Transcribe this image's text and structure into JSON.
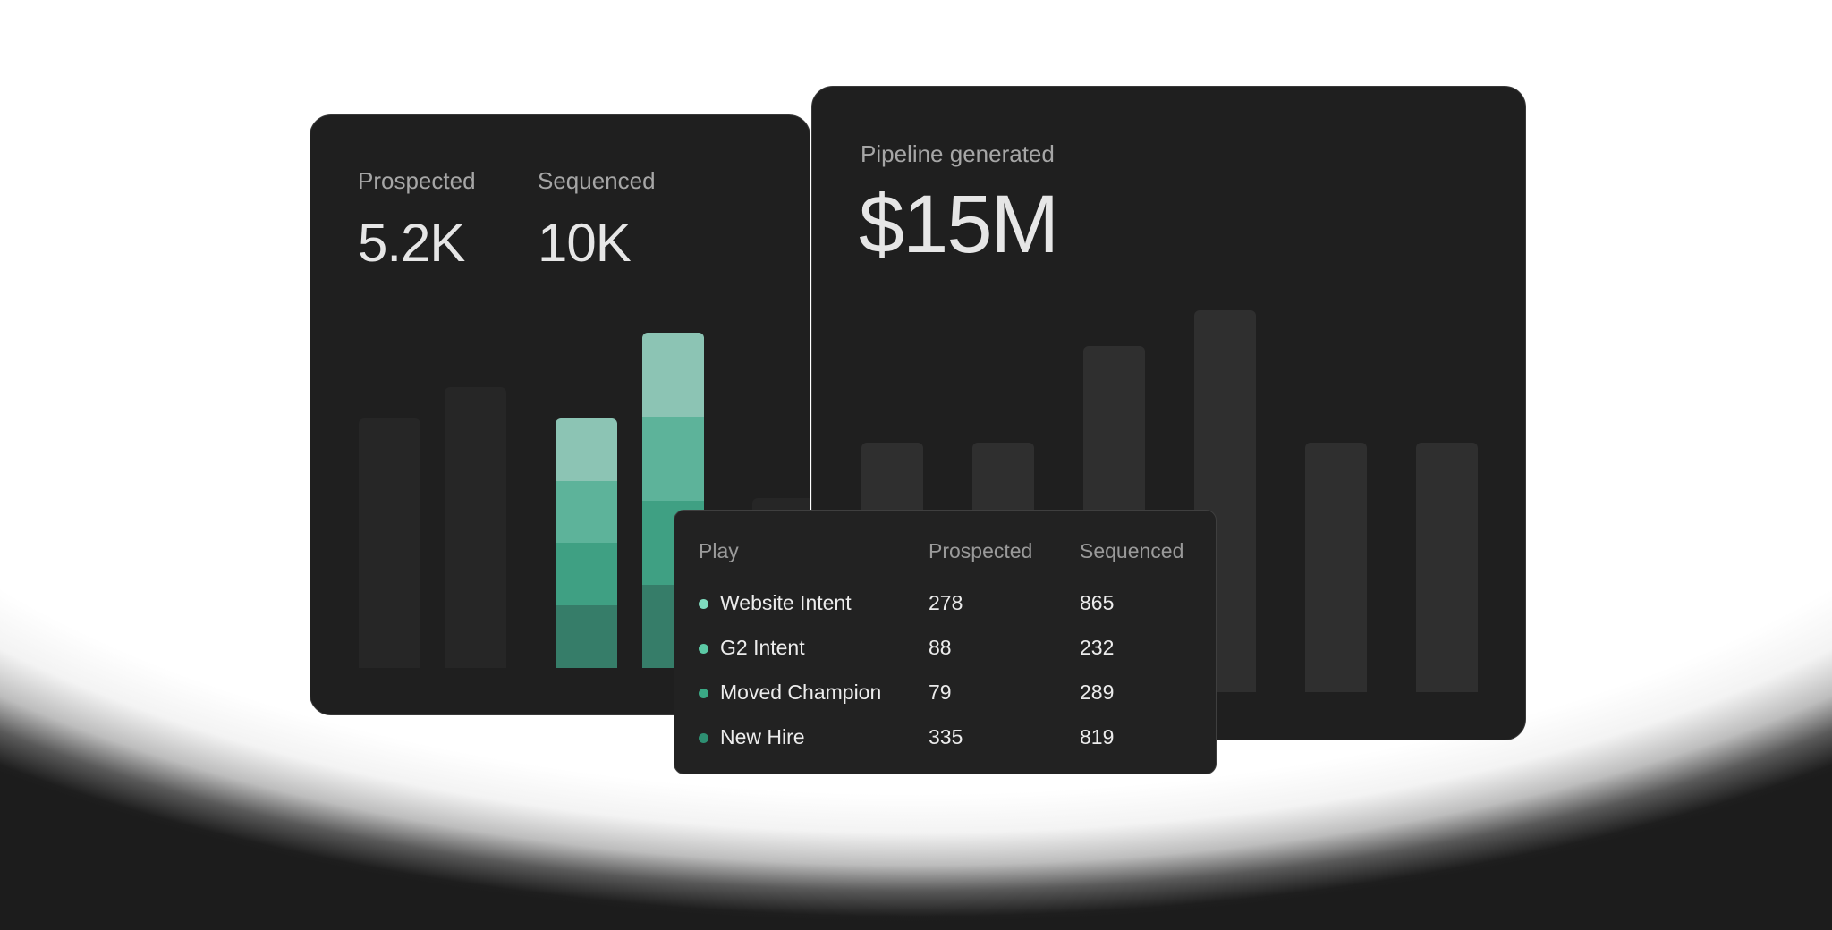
{
  "left_card": {
    "stats": [
      {
        "label": "Prospected",
        "value": "5.2K"
      },
      {
        "label": "Sequenced",
        "value": "10K"
      }
    ]
  },
  "right_card": {
    "label": "Pipeline generated",
    "value": "$15M"
  },
  "table": {
    "headers": [
      "Play",
      "Prospected",
      "Sequenced"
    ],
    "rows": [
      {
        "play": "Website Intent",
        "prospected": "278",
        "sequenced": "865",
        "dot_color": "#7fdcbf"
      },
      {
        "play": "G2 Intent",
        "prospected": "88",
        "sequenced": "232",
        "dot_color": "#5cc9a5"
      },
      {
        "play": "Moved Champion",
        "prospected": "79",
        "sequenced": "289",
        "dot_color": "#3aa985"
      },
      {
        "play": "New Hire",
        "prospected": "335",
        "sequenced": "819",
        "dot_color": "#2e8f72"
      }
    ]
  },
  "colors": {
    "card_bg": "#1f1f1f",
    "bar_muted": "#262626",
    "bar_right": "#2f2f2f",
    "segments": [
      "#8cc4b4",
      "#5db39a",
      "#3fa083",
      "#367d69"
    ]
  }
}
